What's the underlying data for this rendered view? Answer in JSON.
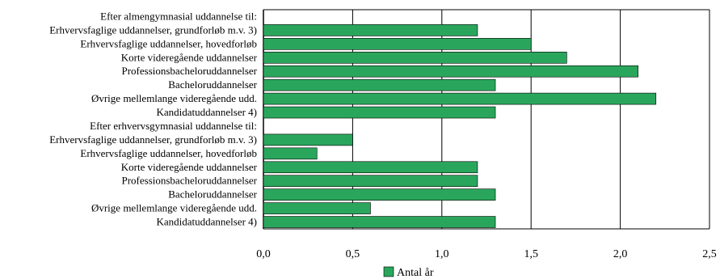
{
  "chart_data": {
    "type": "bar",
    "orientation": "horizontal",
    "categories": [
      "Efter almengymnasial uddannelse til:",
      "Erhvervsfaglige uddannelser, grundforløb m.v. 3)",
      "Erhvervsfaglige uddannelser, hovedforløb",
      "Korte videregående uddannelser",
      "Professionsbacheloruddannelser",
      "Bacheloruddannelser",
      "Øvrige mellemlange videregående udd.",
      "Kandidatuddannelser 4)",
      "Efter erhvervsgymnasial uddannelse til:",
      "Erhvervsfaglige uddannelser, grundforløb m.v. 3)",
      "Erhvervsfaglige uddannelser, hovedforløb",
      "Korte videregående uddannelser",
      "Professionsbacheloruddannelser",
      "Bacheloruddannelser",
      "Øvrige mellemlange videregående udd.",
      "Kandidatuddannelser 4)"
    ],
    "series": [
      {
        "name": "Antal år",
        "values": [
          null,
          1.2,
          1.5,
          1.7,
          2.1,
          1.3,
          2.2,
          1.3,
          null,
          0.5,
          0.3,
          1.2,
          1.2,
          1.3,
          0.6,
          1.3
        ]
      }
    ],
    "xlim": [
      0,
      2.5
    ],
    "xticks": [
      0,
      0.5,
      1.0,
      1.5,
      2.0,
      2.5
    ],
    "xtick_labels": [
      "0,0",
      "0,5",
      "1,0",
      "1,5",
      "2,0",
      "2,5"
    ],
    "grid": "vertical",
    "legend": "bottom-center",
    "colors": {
      "bar": "#2aa65c",
      "bar_stroke": "#000000",
      "grid": "#000000"
    }
  }
}
